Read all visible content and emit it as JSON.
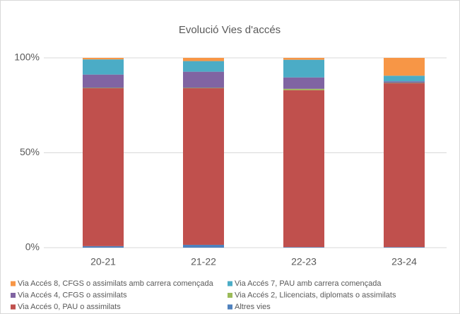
{
  "chart_data": {
    "type": "stacked-bar",
    "title": "Evolució Vies d'accés",
    "categories": [
      "20-21",
      "21-22",
      "22-23",
      "23-24"
    ],
    "series": [
      {
        "name": "Via Accés 8, CFGS o assimilats amb carrera començada",
        "color": "#f79646",
        "values": [
          0.8,
          1.7,
          1,
          9.4
        ]
      },
      {
        "name": "Via Accés 7, PAU amb carrera començada",
        "color": "#4bacc6",
        "values": [
          8,
          5.6,
          9.3,
          3
        ]
      },
      {
        "name": "Via Accés 4, CFGS o assimilats",
        "color": "#8064a2",
        "values": [
          7,
          8.5,
          6,
          0.8
        ]
      },
      {
        "name": "Via Accés 2, Llicenciats, diplomats o assimilats",
        "color": "#9bbb59",
        "values": [
          0.2,
          0.2,
          0.7,
          0.2
        ]
      },
      {
        "name": "Via Accés 0, PAU o assimilats",
        "color": "#c0504d",
        "values": [
          83.2,
          82.5,
          82.7,
          86.3
        ]
      },
      {
        "name": "Altres vies",
        "color": "#4f81bd",
        "values": [
          0.8,
          1.5,
          0.3,
          0.3
        ]
      }
    ],
    "ylim": [
      0,
      100
    ],
    "yticks": [
      {
        "value": 0,
        "label": "0%"
      },
      {
        "value": 50,
        "label": "50%"
      },
      {
        "value": 100,
        "label": "100%"
      }
    ],
    "grid": true
  }
}
